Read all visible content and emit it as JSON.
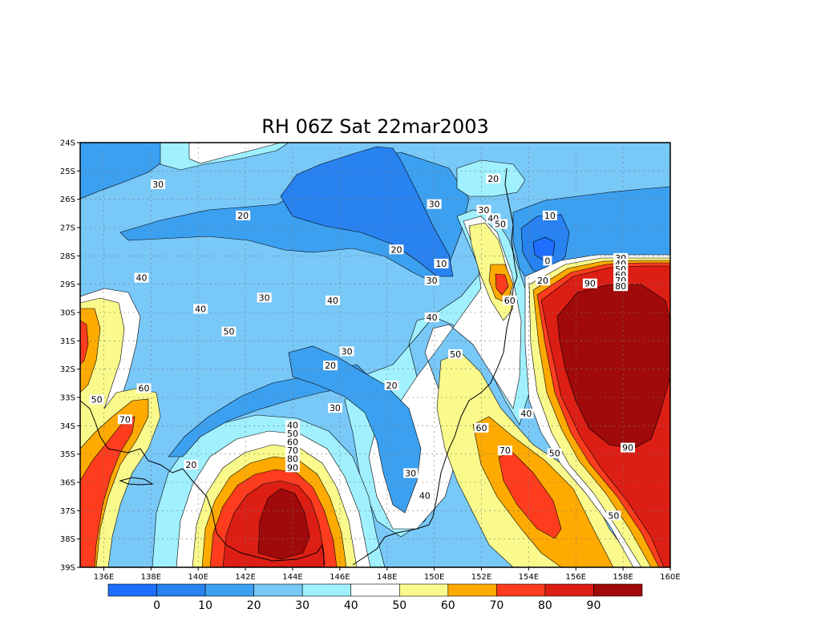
{
  "title": "RH 06Z Sat 22mar2003",
  "colors": {
    "c0": "#1e6eff",
    "c1": "#2882f0",
    "c2": "#3ca0f0",
    "c3": "#78c8f8",
    "c4": "#a0f0ff",
    "c5": "#ffffff",
    "c6": "#fafa8c",
    "c7": "#ffaa00",
    "c8": "#ff3c1e",
    "c9": "#dc1e14",
    "c10": "#a00a0a",
    "grid": "#777777",
    "coast": "#000000"
  },
  "lat_labels": [
    "24S",
    "25S",
    "26S",
    "27S",
    "28S",
    "29S",
    "30S",
    "31S",
    "32S",
    "33S",
    "34S",
    "35S",
    "36S",
    "37S",
    "38S",
    "39S"
  ],
  "lon_labels": [
    "136E",
    "138E",
    "140E",
    "142E",
    "144E",
    "146E",
    "148E",
    "150E",
    "152E",
    "154E",
    "156E",
    "158E",
    "160E"
  ],
  "colorbar": {
    "labels": [
      "0",
      "10",
      "20",
      "30",
      "40",
      "50",
      "60",
      "70",
      "80",
      "90"
    ],
    "colors": [
      "#1e6eff",
      "#2882f0",
      "#3ca0f0",
      "#78c8f8",
      "#a0f0ff",
      "#ffffff",
      "#fafa8c",
      "#ffaa00",
      "#ff3c1e",
      "#dc1e14",
      "#a00a0a"
    ]
  },
  "contour_labels": [
    {
      "text": "30",
      "lon": 138.3,
      "lat": 25.5
    },
    {
      "text": "20",
      "lon": 141.9,
      "lat": 26.6
    },
    {
      "text": "20",
      "lon": 148.4,
      "lat": 27.8
    },
    {
      "text": "10",
      "lon": 150.3,
      "lat": 28.3
    },
    {
      "text": "30",
      "lon": 149.9,
      "lat": 28.9
    },
    {
      "text": "30",
      "lon": 150.0,
      "lat": 26.2
    },
    {
      "text": "20",
      "lon": 152.5,
      "lat": 25.3
    },
    {
      "text": "30",
      "lon": 152.1,
      "lat": 26.4
    },
    {
      "text": "40",
      "lon": 152.5,
      "lat": 26.7
    },
    {
      "text": "50",
      "lon": 152.8,
      "lat": 26.9
    },
    {
      "text": "10",
      "lon": 154.9,
      "lat": 26.6
    },
    {
      "text": "0",
      "lon": 154.8,
      "lat": 28.2
    },
    {
      "text": "20",
      "lon": 154.6,
      "lat": 28.9
    },
    {
      "text": "60",
      "lon": 153.2,
      "lat": 29.6
    },
    {
      "text": "30",
      "lon": 157.9,
      "lat": 28.1
    },
    {
      "text": "40",
      "lon": 157.9,
      "lat": 28.3
    },
    {
      "text": "50",
      "lon": 157.9,
      "lat": 28.5
    },
    {
      "text": "60",
      "lon": 157.9,
      "lat": 28.7
    },
    {
      "text": "70",
      "lon": 157.9,
      "lat": 28.9
    },
    {
      "text": "80",
      "lon": 157.9,
      "lat": 29.1
    },
    {
      "text": "90",
      "lon": 156.6,
      "lat": 29.0
    },
    {
      "text": "40",
      "lon": 137.6,
      "lat": 28.8
    },
    {
      "text": "30",
      "lon": 142.8,
      "lat": 29.5
    },
    {
      "text": "40",
      "lon": 145.7,
      "lat": 29.6
    },
    {
      "text": "40",
      "lon": 140.1,
      "lat": 29.9
    },
    {
      "text": "50",
      "lon": 141.3,
      "lat": 30.7
    },
    {
      "text": "40",
      "lon": 149.9,
      "lat": 30.2
    },
    {
      "text": "30",
      "lon": 146.3,
      "lat": 31.4
    },
    {
      "text": "20",
      "lon": 145.6,
      "lat": 31.9
    },
    {
      "text": "50",
      "lon": 150.9,
      "lat": 31.5
    },
    {
      "text": "20",
      "lon": 148.2,
      "lat": 32.6
    },
    {
      "text": "60",
      "lon": 137.7,
      "lat": 32.7
    },
    {
      "text": "50",
      "lon": 135.7,
      "lat": 33.1
    },
    {
      "text": "30",
      "lon": 145.8,
      "lat": 33.4
    },
    {
      "text": "40",
      "lon": 153.9,
      "lat": 33.6
    },
    {
      "text": "70",
      "lon": 136.9,
      "lat": 33.8
    },
    {
      "text": "40",
      "lon": 144.0,
      "lat": 34.0
    },
    {
      "text": "50",
      "lon": 144.0,
      "lat": 34.3
    },
    {
      "text": "60",
      "lon": 144.0,
      "lat": 34.6
    },
    {
      "text": "70",
      "lon": 144.0,
      "lat": 34.9
    },
    {
      "text": "80",
      "lon": 144.0,
      "lat": 35.2
    },
    {
      "text": "90",
      "lon": 144.0,
      "lat": 35.5
    },
    {
      "text": "60",
      "lon": 152.0,
      "lat": 34.1
    },
    {
      "text": "70",
      "lon": 153.0,
      "lat": 34.9
    },
    {
      "text": "50",
      "lon": 155.1,
      "lat": 35.0
    },
    {
      "text": "90",
      "lon": 158.2,
      "lat": 34.8
    },
    {
      "text": "20",
      "lon": 139.7,
      "lat": 35.4
    },
    {
      "text": "30",
      "lon": 149.0,
      "lat": 35.7
    },
    {
      "text": "40",
      "lon": 149.6,
      "lat": 36.5
    },
    {
      "text": "50",
      "lon": 157.6,
      "lat": 37.2
    }
  ]
}
